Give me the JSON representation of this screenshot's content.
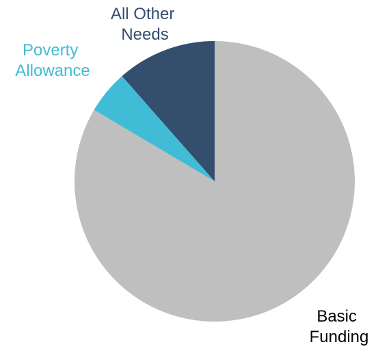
{
  "chart_data": {
    "type": "pie",
    "title": "",
    "start_angle_deg": 0,
    "direction": "clockwise",
    "slices": [
      {
        "label_lines": [
          "Basic",
          "Funding"
        ],
        "value": 83.5,
        "color": "#BFBFBF",
        "label_color": "#000000"
      },
      {
        "label_lines": [
          "Poverty",
          "Allowance"
        ],
        "value": 5.0,
        "color": "#41BCD6",
        "label_color": "#41BCD6"
      },
      {
        "label_lines": [
          "All Other",
          "Needs"
        ],
        "value": 11.5,
        "color": "#344E6D",
        "label_color": "#344E6D"
      }
    ]
  }
}
